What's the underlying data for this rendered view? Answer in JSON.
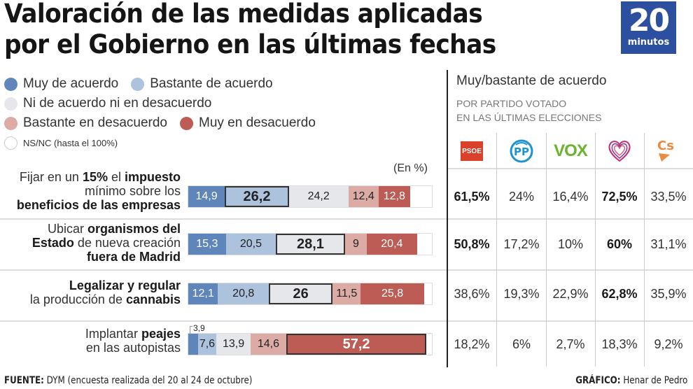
{
  "header": {
    "title_line1": "Valoración de las medidas aplicadas",
    "title_line2": "por el Gobierno en las últimas fechas",
    "logo_number": "20",
    "logo_word": "minutos"
  },
  "colors": {
    "muy_acuerdo": "#5f86bb",
    "bastante_acuerdo": "#adc2dd",
    "neutral": "#e6e7ea",
    "bastante_desacuerdo": "#dcaba6",
    "muy_desacuerdo": "#bd5c55",
    "nsnc": "#ffffff",
    "logo_bg": "#2d4fa0"
  },
  "legend": [
    {
      "key": "muy_acuerdo",
      "label": "Muy de acuerdo"
    },
    {
      "key": "bastante_acuerdo",
      "label": "Bastante de acuerdo"
    },
    {
      "key": "neutral",
      "label": "Ni de acuerdo ni en desacuerdo"
    },
    {
      "key": "bastante_desacuerdo",
      "label": "Bastante en desacuerdo"
    },
    {
      "key": "muy_desacuerdo",
      "label": "Muy en desacuerdo"
    },
    {
      "key": "nsnc",
      "label": "NS/NC (hasta el 100%)"
    }
  ],
  "unit_label": "(En %)",
  "panel": {
    "title": "Muy/bastante de acuerdo",
    "subtitle_line1": "POR PARTIDO VOTADO",
    "subtitle_line2": "EN LAS ÚLTIMAS ELECCIONES",
    "parties": [
      {
        "name": "PSOE",
        "icon": "psoe-logo-icon"
      },
      {
        "name": "PP",
        "icon": "pp-logo-icon"
      },
      {
        "name": "VOX",
        "icon": "vox-logo-icon"
      },
      {
        "name": "Unidas Podemos",
        "icon": "podemos-heart-logo-icon"
      },
      {
        "name": "Cs",
        "icon": "cs-logo-icon"
      }
    ]
  },
  "chart_data": {
    "type": "bar",
    "subtype": "stacked-horizontal-100",
    "title": "Valoración de las medidas aplicadas por el Gobierno en las últimas fechas",
    "unit": "%",
    "xlim": [
      0,
      100
    ],
    "series_names": [
      "Muy de acuerdo",
      "Bastante de acuerdo",
      "Ni de acuerdo ni en desacuerdo",
      "Bastante en desacuerdo",
      "Muy en desacuerdo",
      "NS/NC"
    ],
    "categories": [
      "Fijar en un 15% el impuesto mínimo sobre los beneficios de las empresas",
      "Ubicar organismos del Estado de nueva creación fuera de Madrid",
      "Legalizar y regular la producción de cannabis",
      "Implantar peajes en las autopistas"
    ],
    "rows": [
      {
        "label_parts": [
          [
            "Fijar en un ",
            false
          ],
          [
            "15%",
            true
          ],
          [
            " el ",
            false
          ],
          [
            "impuesto",
            true
          ],
          [
            "\n",
            false
          ],
          [
            "mínimo sobre los",
            false
          ],
          [
            "\n",
            false
          ],
          [
            "beneficios de las empresas",
            true
          ]
        ],
        "values": [
          14.9,
          26.2,
          24.2,
          12.4,
          12.8
        ],
        "labels": [
          "14,9",
          "26,2",
          "24,2",
          "12,4",
          "12,8"
        ],
        "highlight": 1,
        "by_party": [
          "61,5%",
          "24%",
          "16,4%",
          "72,5%",
          "33,5%"
        ],
        "by_party_bold": [
          0,
          3
        ]
      },
      {
        "label_parts": [
          [
            "Ubicar ",
            false
          ],
          [
            "organismos del",
            true
          ],
          [
            "\n",
            false
          ],
          [
            "Estado",
            true
          ],
          [
            " de nueva creación",
            false
          ],
          [
            "\n",
            false
          ],
          [
            "fuera de Madrid",
            true
          ]
        ],
        "values": [
          15.3,
          20.5,
          28.1,
          9,
          20.4
        ],
        "labels": [
          "15,3",
          "20,5",
          "28,1",
          "9",
          "20,4"
        ],
        "highlight": 2,
        "by_party": [
          "50,8%",
          "17,2%",
          "10%",
          "60%",
          "31,1%"
        ],
        "by_party_bold": [
          0,
          3
        ]
      },
      {
        "label_parts": [
          [
            "Legalizar y regular",
            true
          ],
          [
            "\n",
            false
          ],
          [
            "la producción de ",
            false
          ],
          [
            "cannabis",
            true
          ]
        ],
        "values": [
          12.1,
          20.8,
          26,
          11.5,
          25.8
        ],
        "labels": [
          "12,1",
          "20,8",
          "26",
          "11,5",
          "25,8"
        ],
        "highlight": 2,
        "by_party": [
          "38,6%",
          "19,3%",
          "22,9%",
          "62,8%",
          "35,9%"
        ],
        "by_party_bold": [
          3
        ]
      },
      {
        "label_parts": [
          [
            "Implantar ",
            false
          ],
          [
            "peajes",
            true
          ],
          [
            "\n",
            false
          ],
          [
            "en las autopistas",
            false
          ]
        ],
        "values": [
          3.9,
          7.6,
          13.9,
          14.6,
          57.2
        ],
        "labels": [
          "",
          "7,6",
          "13,9",
          "14,6",
          "57,2"
        ],
        "outside_label": "3,9",
        "highlight": 4,
        "by_party": [
          "18,2%",
          "6%",
          "2,7%",
          "18,3%",
          "9,2%"
        ],
        "by_party_bold": []
      }
    ]
  },
  "footer": {
    "source_label": "FUENTE:",
    "source_text": " DYM (encuesta realizada del 20 al 24 de octubre)",
    "credit_label": "GRÁFICO:",
    "credit_text": " Henar de Pedro"
  }
}
